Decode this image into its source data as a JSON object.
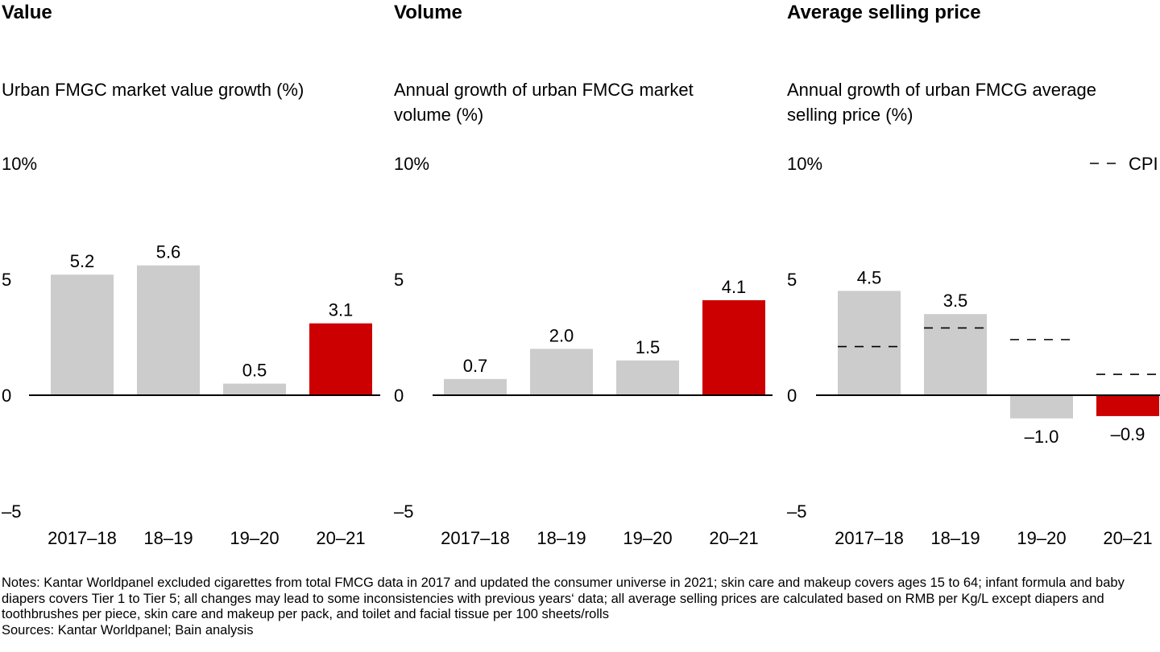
{
  "colors": {
    "bar_gray": "#cccccc",
    "bar_highlight": "#cc0000",
    "axis": "#000000",
    "cpi_dash": "#000000"
  },
  "chart_data": [
    {
      "type": "bar",
      "heading": "Value",
      "title": "Urban FMGC market value growth (%)",
      "categories": [
        "2017–18",
        "18–19",
        "19–20",
        "20–21"
      ],
      "values": [
        5.2,
        5.6,
        0.5,
        3.1
      ],
      "value_labels": [
        "5.2",
        "5.6",
        "0.5",
        "3.1"
      ],
      "highlight_index": 3,
      "ylim": [
        -5,
        10
      ],
      "yticks": [
        10,
        5,
        0,
        -5
      ],
      "ytick_labels": [
        "10%",
        "5",
        "0",
        "–5"
      ]
    },
    {
      "type": "bar",
      "heading": "Volume",
      "title": "Annual growth of urban FMCG market volume (%)",
      "categories": [
        "2017–18",
        "18–19",
        "19–20",
        "20–21"
      ],
      "values": [
        0.7,
        2.0,
        1.5,
        4.1
      ],
      "value_labels": [
        "0.7",
        "2.0",
        "1.5",
        "4.1"
      ],
      "highlight_index": 3,
      "ylim": [
        -5,
        10
      ],
      "yticks": [
        10,
        5,
        0,
        -5
      ],
      "ytick_labels": [
        "10%",
        "5",
        "0",
        "–5"
      ]
    },
    {
      "type": "bar",
      "heading": "Average selling price",
      "title": "Annual growth of urban FMCG average selling price (%)",
      "categories": [
        "2017–18",
        "18–19",
        "19–20",
        "20–21"
      ],
      "values": [
        4.5,
        3.5,
        -1.0,
        -0.9
      ],
      "value_labels": [
        "4.5",
        "3.5",
        "–1.0",
        "–0.9"
      ],
      "highlight_index": 3,
      "ylim": [
        -5,
        10
      ],
      "yticks": [
        10,
        5,
        0,
        -5
      ],
      "ytick_labels": [
        "10%",
        "5",
        "0",
        "–5"
      ],
      "cpi": {
        "legend": "CPI",
        "values": [
          2.1,
          2.9,
          2.4,
          0.9
        ]
      }
    }
  ],
  "footer": {
    "notes": "Notes: Kantar Worldpanel excluded cigarettes from total FMCG data in 2017 and updated the consumer universe in 2021; skin care and makeup covers ages 15 to 64; infant formula and baby diapers covers Tier 1 to Tier 5; all changes may lead to some inconsistencies with previous years‘ data; all average selling prices are calculated based on RMB per Kg/L except diapers and toothbrushes per piece, skin care and makeup per pack, and toilet and facial tissue per 100 sheets/rolls",
    "sources": "Sources: Kantar Worldpanel; Bain analysis"
  }
}
